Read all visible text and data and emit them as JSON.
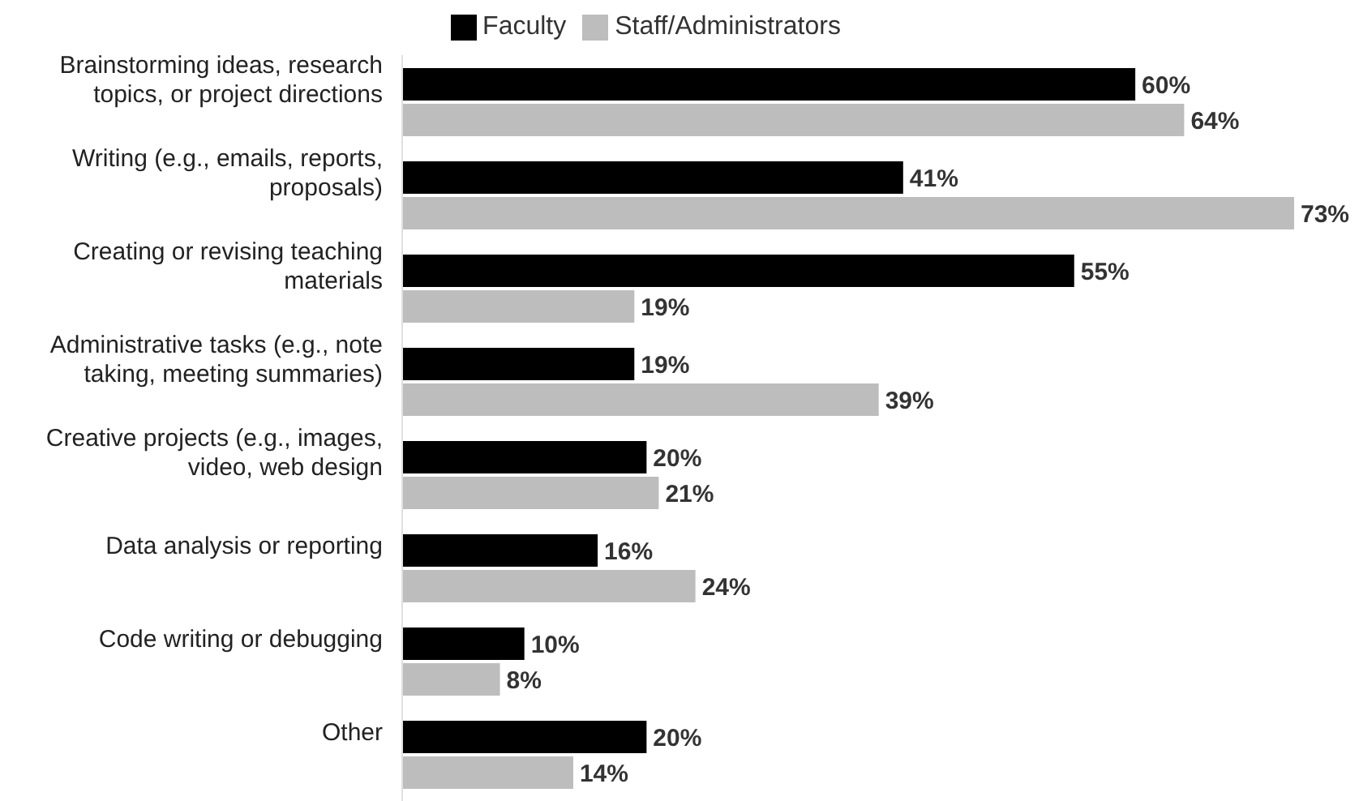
{
  "chart_data": {
    "type": "bar",
    "orientation": "horizontal",
    "legend": "top",
    "grid": false,
    "categories": [
      "Brainstorming ideas, research topics, or project directions",
      "Writing (e.g., emails, reports, proposals)",
      "Creating or revising teaching materials",
      "Administrative tasks (e.g., note taking, meeting summaries)",
      "Creative projects (e.g., images, video, web design",
      "Data analysis or reporting",
      "Code writing or debugging",
      "Other"
    ],
    "series": [
      {
        "name": "Faculty",
        "color": "#000000",
        "values": [
          60,
          41,
          55,
          19,
          20,
          16,
          10,
          20
        ],
        "value_labels": [
          "60%",
          "41%",
          "55%",
          "19%",
          "20%",
          "16%",
          "10%",
          "20%"
        ]
      },
      {
        "name": "Staff/Administrators",
        "color": "#bdbdbd",
        "values": [
          64,
          73,
          19,
          39,
          21,
          24,
          8,
          14
        ],
        "value_labels": [
          "64%",
          "73%",
          "19%",
          "39%",
          "21%",
          "24%",
          "8%",
          "14%"
        ]
      }
    ]
  }
}
